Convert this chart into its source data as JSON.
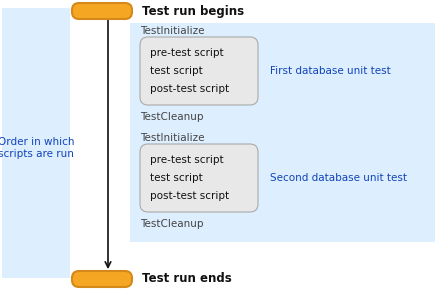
{
  "bg_color": "#ffffff",
  "left_bg_color": "#ddeeff",
  "right_bg_color": "#ddeeff",
  "pill_color": "#f5a623",
  "pill_border": "#d4891a",
  "box_bg": "#e8e8e8",
  "box_border": "#aaaaaa",
  "arrow_color": "#111111",
  "blue_text": "#1144bb",
  "dark_text": "#111111",
  "gray_text": "#444444",
  "left_label": "Order in which\nscripts are run",
  "start_label": "Test run begins",
  "end_label": "Test run ends",
  "test_init": "TestInitialize",
  "test_cleanup": "TestCleanup",
  "box_lines": [
    "pre-test script",
    "test script",
    "post-test script"
  ],
  "first_label": "First database unit test",
  "second_label": "Second database unit test"
}
